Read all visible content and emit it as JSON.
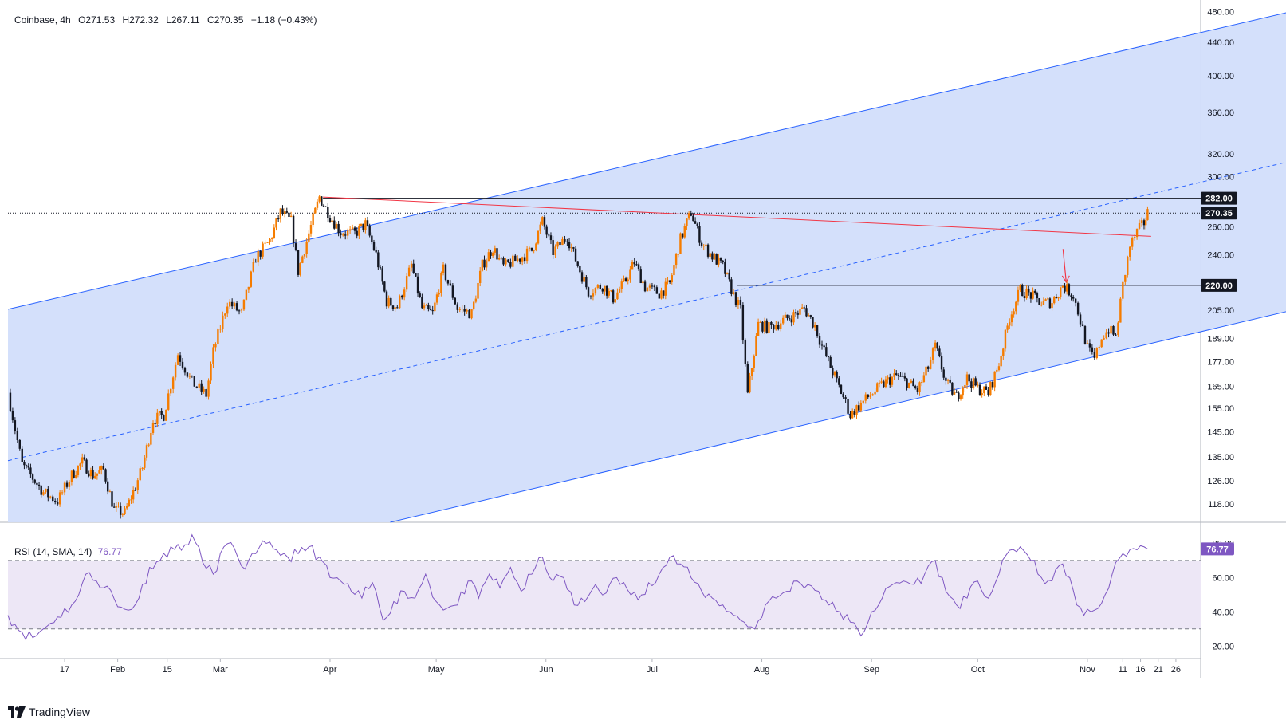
{
  "header": {
    "symbol": "Coinbase",
    "interval": "4h",
    "open": "O271.53",
    "high": "H272.32",
    "low": "L267.11",
    "close": "C270.35",
    "change": "−1.18 (−0.43%)"
  },
  "rsi_legend": {
    "label": "RSI (14, SMA, 14)",
    "value": "76.77"
  },
  "branding": {
    "name": "TradingView"
  },
  "colors": {
    "up": "#f57c00",
    "down": "#131722",
    "channel_fill": "#d2defb",
    "channel_line": "#2962ff",
    "resistance_line": "#f23645",
    "rsi_line": "#7e57c2",
    "rsi_band": "#ede7f6",
    "badge_bg": "#131722"
  },
  "chart_data": {
    "type": "candlestick",
    "title": "Coinbase, 4h",
    "scale": "logarithmic",
    "price_ticks": [
      480,
      440,
      400,
      360,
      320,
      300,
      282,
      270.35,
      260,
      240,
      220,
      205,
      189,
      177,
      165,
      155,
      145,
      135,
      126,
      118
    ],
    "price_labels": [
      "480.00",
      "440.00",
      "400.00",
      "360.00",
      "320.00",
      "300.00",
      "282.00",
      "270.35",
      "260.00",
      "240.00",
      "220.00",
      "205.00",
      "189.00",
      "177.00",
      "165.00",
      "155.00",
      "145.00",
      "135.00",
      "126.00",
      "118.00"
    ],
    "highlighted_labels": [
      "282.00",
      "270.35",
      "220.00"
    ],
    "time_labels": [
      "17",
      "Feb",
      "15",
      "Mar",
      "Apr",
      "May",
      "Jun",
      "Jul",
      "Aug",
      "Sep",
      "Oct",
      "Nov",
      "11",
      "16",
      "21",
      "26"
    ],
    "time_label_days": [
      16,
      31,
      45,
      60,
      91,
      121,
      152,
      182,
      213,
      244,
      274,
      305,
      315,
      320,
      325,
      330
    ],
    "horizontal_levels": [
      282,
      220
    ],
    "last_price": 270.35,
    "channel": {
      "upper": [
        [
          0,
          205.5
        ],
        [
          366,
          484
        ]
      ],
      "lower": [
        [
          108,
          112
        ],
        [
          366,
          206.5
        ]
      ],
      "middle": [
        [
          0,
          133.5
        ],
        [
          366,
          316
        ]
      ]
    },
    "resistance_line": [
      [
        89,
        283
      ],
      [
        323,
        253
      ]
    ],
    "arrow_marker": {
      "day": 299,
      "from_price": 244,
      "to_price": 222
    },
    "price_path": [
      [
        0,
        162
      ],
      [
        4,
        132
      ],
      [
        7,
        127
      ],
      [
        10,
        122
      ],
      [
        14,
        119
      ],
      [
        18,
        128
      ],
      [
        21,
        133
      ],
      [
        24,
        128
      ],
      [
        27,
        130
      ],
      [
        30,
        116
      ],
      [
        33,
        115
      ],
      [
        36,
        124
      ],
      [
        38,
        131
      ],
      [
        41,
        150
      ],
      [
        44,
        152
      ],
      [
        48,
        181
      ],
      [
        52,
        167
      ],
      [
        56,
        161
      ],
      [
        58,
        182
      ],
      [
        62,
        210
      ],
      [
        66,
        203
      ],
      [
        70,
        238
      ],
      [
        74,
        250
      ],
      [
        77,
        271
      ],
      [
        80,
        264
      ],
      [
        82,
        229
      ],
      [
        85,
        255
      ],
      [
        88,
        283
      ],
      [
        91,
        268
      ],
      [
        94,
        256
      ],
      [
        98,
        255
      ],
      [
        101,
        262
      ],
      [
        104,
        240
      ],
      [
        107,
        210
      ],
      [
        110,
        207
      ],
      [
        114,
        233
      ],
      [
        117,
        206
      ],
      [
        120,
        203
      ],
      [
        123,
        230
      ],
      [
        127,
        206
      ],
      [
        131,
        203
      ],
      [
        134,
        233
      ],
      [
        137,
        245
      ],
      [
        140,
        232
      ],
      [
        144,
        237
      ],
      [
        148,
        243
      ],
      [
        151,
        264
      ],
      [
        154,
        242
      ],
      [
        158,
        253
      ],
      [
        161,
        233
      ],
      [
        164,
        216
      ],
      [
        168,
        220
      ],
      [
        171,
        212
      ],
      [
        174,
        221
      ],
      [
        177,
        235
      ],
      [
        180,
        219
      ],
      [
        184,
        215
      ],
      [
        187,
        221
      ],
      [
        190,
        251
      ],
      [
        193,
        271
      ],
      [
        196,
        248
      ],
      [
        199,
        239
      ],
      [
        202,
        232
      ],
      [
        205,
        214
      ],
      [
        207,
        205
      ],
      [
        209,
        161
      ],
      [
        212,
        197
      ],
      [
        215,
        195
      ],
      [
        219,
        199
      ],
      [
        222,
        202
      ],
      [
        225,
        206
      ],
      [
        228,
        196
      ],
      [
        230,
        185
      ],
      [
        233,
        172
      ],
      [
        236,
        160
      ],
      [
        238,
        152
      ],
      [
        241,
        157
      ],
      [
        245,
        163
      ],
      [
        248,
        167
      ],
      [
        251,
        170
      ],
      [
        254,
        167
      ],
      [
        257,
        163
      ],
      [
        260,
        174
      ],
      [
        262,
        185
      ],
      [
        265,
        167
      ],
      [
        268,
        160
      ],
      [
        271,
        169
      ],
      [
        274,
        164
      ],
      [
        277,
        162
      ],
      [
        280,
        176
      ],
      [
        283,
        201
      ],
      [
        286,
        217
      ],
      [
        289,
        214
      ],
      [
        292,
        209
      ],
      [
        295,
        210
      ],
      [
        298,
        220
      ],
      [
        301,
        214
      ],
      [
        303,
        199
      ],
      [
        305,
        184
      ],
      [
        307,
        178
      ],
      [
        309,
        190
      ],
      [
        311,
        194
      ],
      [
        313,
        190
      ],
      [
        315,
        220
      ],
      [
        317,
        246
      ],
      [
        319,
        256
      ],
      [
        321,
        263
      ],
      [
        322,
        270.35
      ]
    ],
    "rsi": {
      "range": [
        15,
        90
      ],
      "ticks": [
        80,
        60,
        40,
        20
      ],
      "overbought": 70,
      "oversold": 30,
      "last": 76.77,
      "path": [
        [
          0,
          38
        ],
        [
          4,
          28
        ],
        [
          7,
          25
        ],
        [
          10,
          30
        ],
        [
          14,
          37
        ],
        [
          18,
          44
        ],
        [
          20,
          50
        ],
        [
          22,
          62
        ],
        [
          25,
          58
        ],
        [
          28,
          55
        ],
        [
          31,
          43
        ],
        [
          34,
          41
        ],
        [
          37,
          48
        ],
        [
          40,
          66
        ],
        [
          43,
          70
        ],
        [
          46,
          78
        ],
        [
          49,
          76
        ],
        [
          52,
          85
        ],
        [
          55,
          69
        ],
        [
          58,
          62
        ],
        [
          61,
          78
        ],
        [
          64,
          77
        ],
        [
          67,
          65
        ],
        [
          70,
          74
        ],
        [
          73,
          80
        ],
        [
          76,
          76
        ],
        [
          79,
          72
        ],
        [
          82,
          74
        ],
        [
          85,
          78
        ],
        [
          88,
          72
        ],
        [
          91,
          60
        ],
        [
          94,
          58
        ],
        [
          97,
          52
        ],
        [
          100,
          48
        ],
        [
          103,
          57
        ],
        [
          106,
          35
        ],
        [
          109,
          46
        ],
        [
          112,
          52
        ],
        [
          115,
          48
        ],
        [
          118,
          62
        ],
        [
          121,
          46
        ],
        [
          124,
          42
        ],
        [
          127,
          44
        ],
        [
          130,
          58
        ],
        [
          133,
          48
        ],
        [
          136,
          62
        ],
        [
          139,
          54
        ],
        [
          142,
          66
        ],
        [
          145,
          52
        ],
        [
          148,
          62
        ],
        [
          151,
          72
        ],
        [
          154,
          58
        ],
        [
          157,
          60
        ],
        [
          160,
          44
        ],
        [
          163,
          46
        ],
        [
          166,
          56
        ],
        [
          169,
          51
        ],
        [
          172,
          60
        ],
        [
          175,
          53
        ],
        [
          178,
          47
        ],
        [
          181,
          57
        ],
        [
          184,
          62
        ],
        [
          187,
          72
        ],
        [
          190,
          68
        ],
        [
          193,
          60
        ],
        [
          196,
          52
        ],
        [
          199,
          48
        ],
        [
          202,
          44
        ],
        [
          205,
          38
        ],
        [
          208,
          34
        ],
        [
          211,
          30
        ],
        [
          214,
          44
        ],
        [
          217,
          48
        ],
        [
          220,
          52
        ],
        [
          223,
          58
        ],
        [
          226,
          56
        ],
        [
          229,
          52
        ],
        [
          232,
          44
        ],
        [
          235,
          40
        ],
        [
          238,
          34
        ],
        [
          241,
          26
        ],
        [
          244,
          40
        ],
        [
          247,
          48
        ],
        [
          250,
          56
        ],
        [
          253,
          58
        ],
        [
          256,
          56
        ],
        [
          259,
          62
        ],
        [
          262,
          70
        ],
        [
          265,
          52
        ],
        [
          268,
          44
        ],
        [
          271,
          48
        ],
        [
          274,
          58
        ],
        [
          277,
          48
        ],
        [
          280,
          62
        ],
        [
          283,
          76
        ],
        [
          286,
          78
        ],
        [
          289,
          70
        ],
        [
          292,
          60
        ],
        [
          295,
          58
        ],
        [
          298,
          68
        ],
        [
          300,
          60
        ],
        [
          302,
          44
        ],
        [
          304,
          38
        ],
        [
          306,
          40
        ],
        [
          308,
          42
        ],
        [
          310,
          50
        ],
        [
          312,
          62
        ],
        [
          315,
          74
        ],
        [
          318,
          77
        ],
        [
          321,
          78
        ],
        [
          322,
          76.77
        ]
      ]
    }
  }
}
